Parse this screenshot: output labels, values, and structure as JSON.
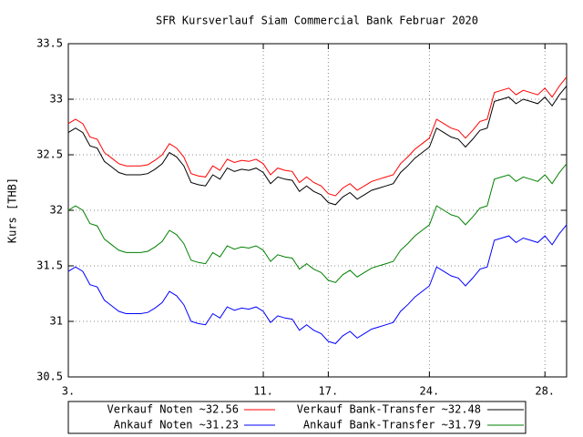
{
  "chart_data": {
    "type": "line",
    "title": "SFR Kursverlauf Siam Commercial Bank Februar 2020",
    "y_label": "Kurs [THB]",
    "categories": [
      "3.",
      null,
      null,
      null,
      null,
      null,
      null,
      null,
      null,
      null,
      null,
      null,
      null,
      null,
      null,
      null,
      null,
      null,
      null,
      null,
      null,
      null,
      null,
      null,
      null,
      null,
      null,
      "11.",
      null,
      null,
      null,
      null,
      null,
      null,
      null,
      null,
      "17.",
      null,
      null,
      null,
      null,
      null,
      null,
      null,
      null,
      null,
      null,
      null,
      null,
      null,
      "24.",
      null,
      null,
      null,
      null,
      null,
      null,
      null,
      null,
      null,
      null,
      null,
      null,
      null,
      null,
      null,
      "28.",
      null,
      null,
      null
    ],
    "series": [
      {
        "name": "Verkauf Noten ~32.56",
        "color": "#ff0000",
        "values": [
          32.78,
          32.82,
          32.78,
          32.66,
          32.64,
          32.52,
          32.47,
          32.42,
          32.4,
          32.4,
          32.4,
          32.41,
          32.45,
          32.5,
          32.6,
          32.56,
          32.48,
          32.33,
          32.31,
          32.3,
          32.4,
          32.36,
          32.46,
          32.43,
          32.45,
          32.44,
          32.46,
          32.42,
          32.32,
          32.38,
          32.36,
          32.35,
          32.25,
          32.3,
          32.25,
          32.22,
          32.15,
          32.13,
          32.2,
          32.24,
          32.18,
          32.22,
          32.26,
          32.28,
          32.3,
          32.32,
          32.42,
          32.48,
          32.55,
          32.6,
          32.65,
          32.82,
          32.78,
          32.74,
          32.72,
          32.65,
          32.72,
          32.8,
          32.82,
          33.06,
          33.08,
          33.1,
          33.04,
          33.08,
          33.06,
          33.04,
          33.1,
          33.02,
          33.12,
          33.2
        ]
      },
      {
        "name": "Verkauf Bank-Transfer ~32.48",
        "color": "#000000",
        "values": [
          32.7,
          32.74,
          32.7,
          32.58,
          32.56,
          32.44,
          32.39,
          32.34,
          32.32,
          32.32,
          32.32,
          32.33,
          32.37,
          32.42,
          32.52,
          32.48,
          32.4,
          32.25,
          32.23,
          32.22,
          32.32,
          32.28,
          32.38,
          32.35,
          32.37,
          32.36,
          32.38,
          32.34,
          32.24,
          32.3,
          32.28,
          32.27,
          32.17,
          32.22,
          32.17,
          32.14,
          32.07,
          32.05,
          32.12,
          32.16,
          32.1,
          32.14,
          32.18,
          32.2,
          32.22,
          32.24,
          32.34,
          32.4,
          32.47,
          32.52,
          32.57,
          32.74,
          32.7,
          32.66,
          32.64,
          32.57,
          32.64,
          32.72,
          32.74,
          32.98,
          33.0,
          33.02,
          32.96,
          33.0,
          32.98,
          32.96,
          33.02,
          32.94,
          33.04,
          33.12
        ]
      },
      {
        "name": "Ankauf Noten ~31.23",
        "color": "#0000ff",
        "values": [
          31.45,
          31.49,
          31.45,
          31.33,
          31.31,
          31.19,
          31.14,
          31.09,
          31.07,
          31.07,
          31.07,
          31.08,
          31.12,
          31.17,
          31.27,
          31.23,
          31.15,
          31.0,
          30.98,
          30.97,
          31.07,
          31.03,
          31.13,
          31.1,
          31.12,
          31.11,
          31.13,
          31.09,
          30.99,
          31.05,
          31.03,
          31.02,
          30.92,
          30.97,
          30.92,
          30.89,
          30.82,
          30.8,
          30.87,
          30.91,
          30.85,
          30.89,
          30.93,
          30.95,
          30.97,
          30.99,
          31.09,
          31.15,
          31.22,
          31.27,
          31.32,
          31.49,
          31.45,
          31.41,
          31.39,
          31.32,
          31.39,
          31.47,
          31.49,
          31.73,
          31.75,
          31.77,
          31.71,
          31.75,
          31.73,
          31.71,
          31.77,
          31.69,
          31.79,
          31.87
        ]
      },
      {
        "name": "Ankauf Bank-Transfer ~31.79",
        "color": "#008000",
        "values": [
          32.0,
          32.04,
          32.0,
          31.88,
          31.86,
          31.74,
          31.69,
          31.64,
          31.62,
          31.62,
          31.62,
          31.63,
          31.67,
          31.72,
          31.82,
          31.78,
          31.7,
          31.55,
          31.53,
          31.52,
          31.62,
          31.58,
          31.68,
          31.65,
          31.67,
          31.66,
          31.68,
          31.64,
          31.54,
          31.6,
          31.58,
          31.57,
          31.47,
          31.52,
          31.47,
          31.44,
          31.37,
          31.35,
          31.42,
          31.46,
          31.4,
          31.44,
          31.48,
          31.5,
          31.52,
          31.54,
          31.64,
          31.7,
          31.77,
          31.82,
          31.87,
          32.04,
          32.0,
          31.96,
          31.94,
          31.87,
          31.94,
          32.02,
          32.04,
          32.28,
          32.3,
          32.32,
          32.26,
          32.3,
          32.28,
          32.26,
          32.32,
          32.24,
          32.34,
          32.42
        ]
      }
    ],
    "ylim": [
      30.5,
      33.5
    ],
    "yticks": [
      30.5,
      31,
      31.5,
      32,
      32.5,
      33,
      33.5
    ],
    "grid": true,
    "legend": "bottom"
  }
}
